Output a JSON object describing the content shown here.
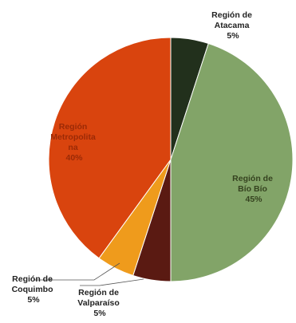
{
  "chart_data": {
    "type": "pie",
    "title": "",
    "slices": [
      {
        "label_lines": [
          "Región de",
          "Atacama"
        ],
        "percent_label": "5%",
        "value": 5,
        "color": "#22301c"
      },
      {
        "label_lines": [
          "Región de",
          "Bío Bío"
        ],
        "percent_label": "45%",
        "value": 45,
        "color": "#82a468"
      },
      {
        "label_lines": [
          "Región de",
          "Valparaíso"
        ],
        "percent_label": "5%",
        "value": 5,
        "color": "#5a1a12"
      },
      {
        "label_lines": [
          "Región de",
          "Coquimbo"
        ],
        "percent_label": "5%",
        "value": 5,
        "color": "#ef9b1c"
      },
      {
        "label_lines": [
          "Región",
          "Metropolita",
          "na"
        ],
        "percent_label": "40%",
        "value": 40,
        "color": "#d9440e"
      }
    ]
  }
}
